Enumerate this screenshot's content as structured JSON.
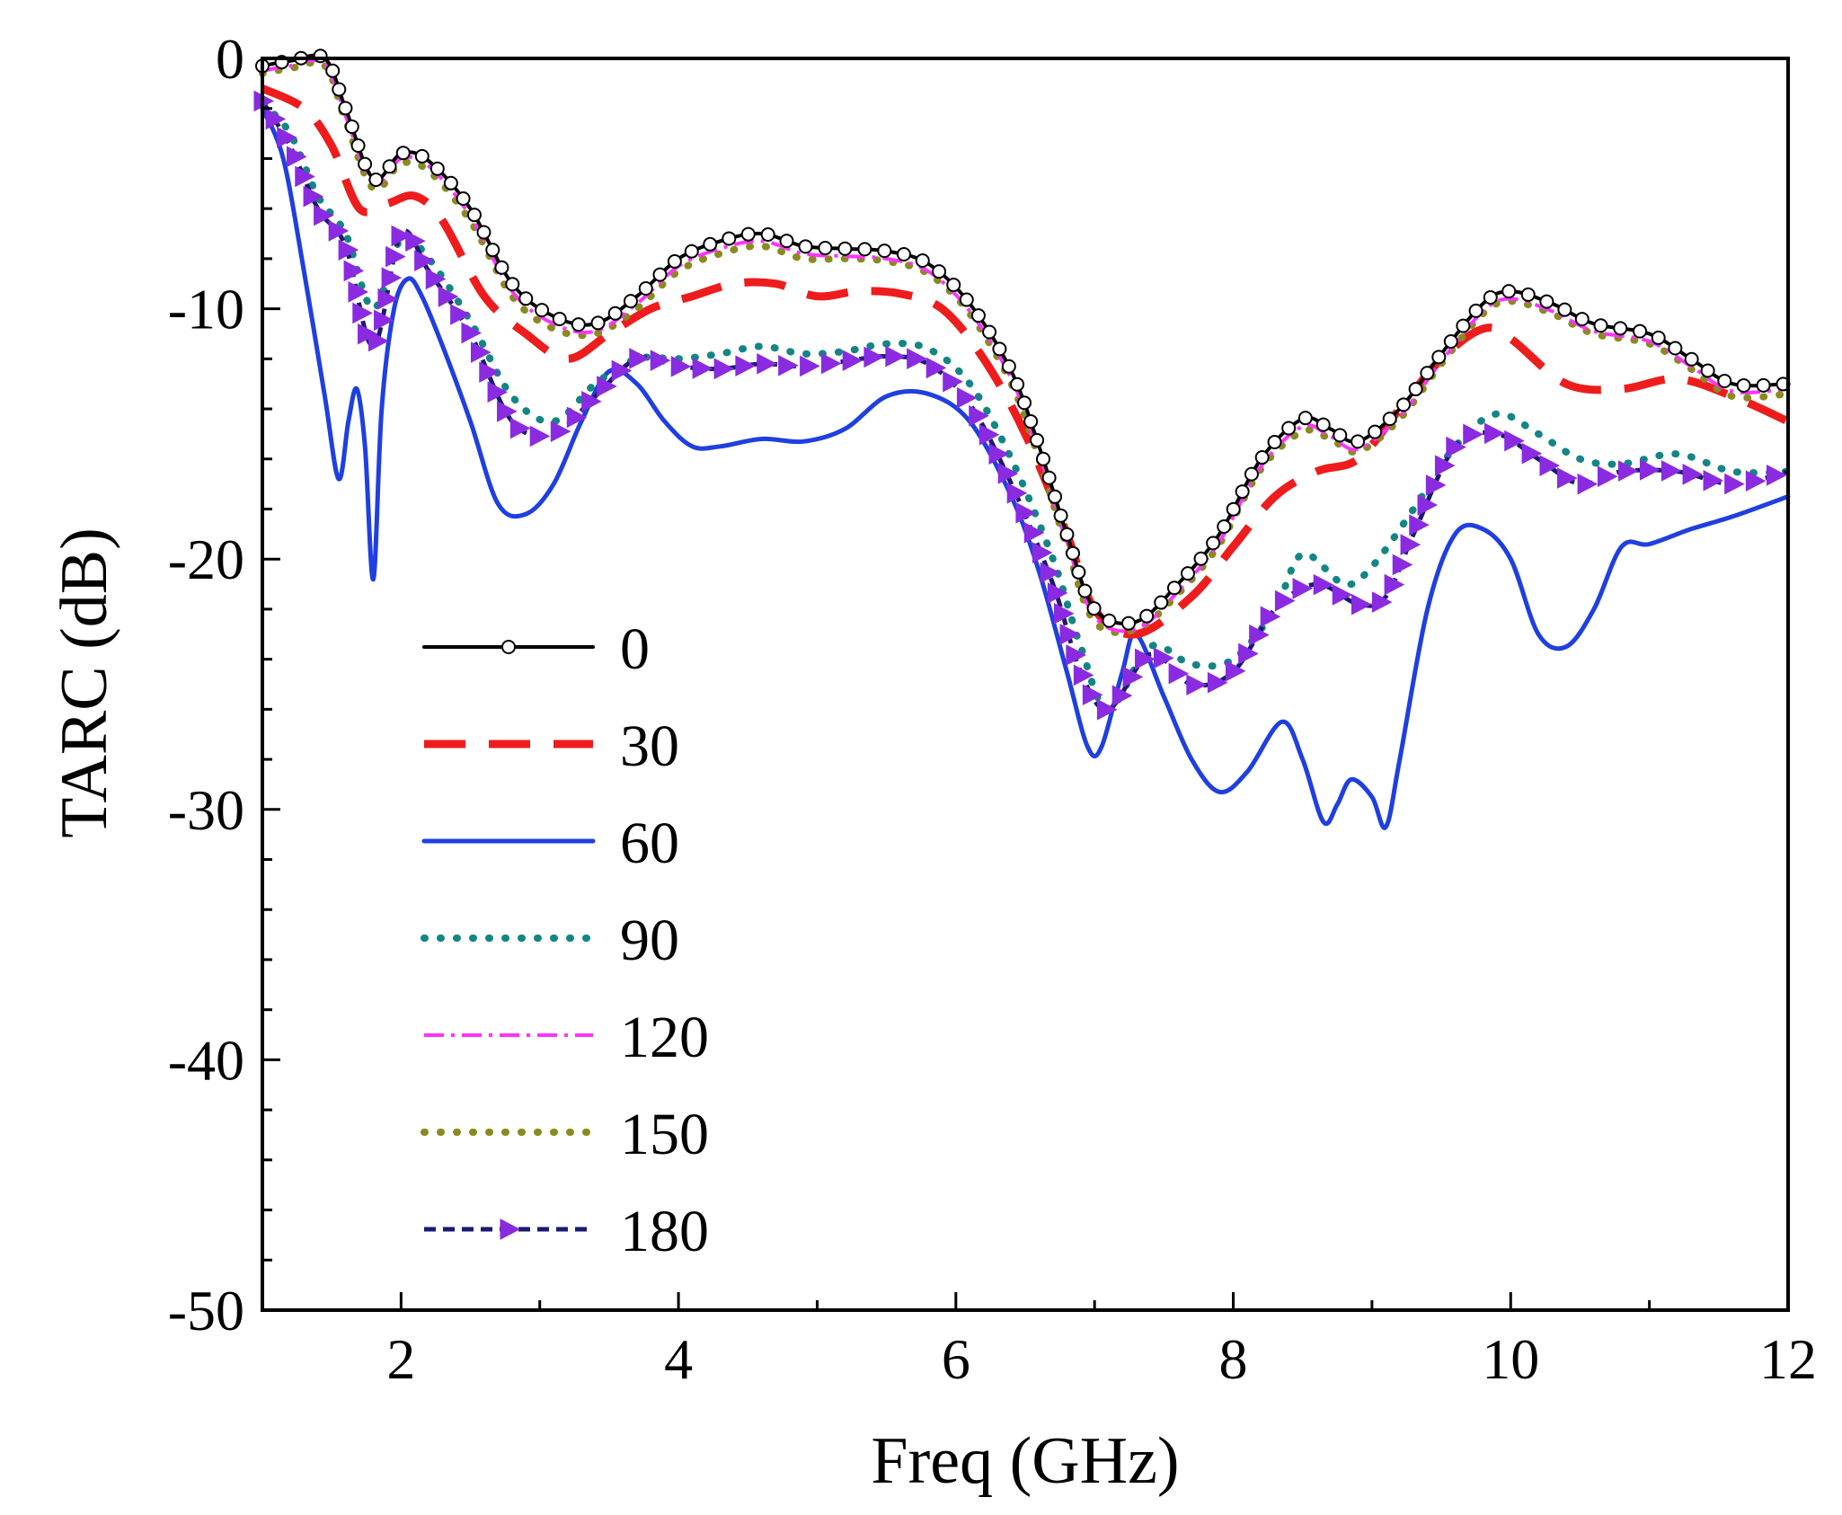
{
  "chart_data": {
    "type": "line",
    "title": "",
    "xlabel": "Freq (GHz)",
    "ylabel": "TARC (dB)",
    "xlim": [
      1,
      12
    ],
    "ylim": [
      -50,
      0
    ],
    "xticks": [
      2,
      4,
      6,
      8,
      10,
      12
    ],
    "yticks": [
      0,
      -10,
      -20,
      -30,
      -40,
      -50
    ],
    "xtick_labels": [
      "2",
      "4",
      "6",
      "8",
      "10",
      "12"
    ],
    "ytick_labels": [
      "0",
      "-10",
      "-20",
      "-30",
      "-40",
      "-50"
    ],
    "legend_position": "lower-left",
    "grid": false,
    "series": [
      {
        "name": "0",
        "color": "#000000",
        "style": "solid-circle",
        "x": [
          1.0,
          1.2,
          1.45,
          1.6,
          1.8,
          2.0,
          2.2,
          2.5,
          2.8,
          3.1,
          3.4,
          3.7,
          4.0,
          4.3,
          4.6,
          4.9,
          5.2,
          5.5,
          5.8,
          6.1,
          6.4,
          6.6,
          6.8,
          7.0,
          7.3,
          7.6,
          7.9,
          8.2,
          8.5,
          8.7,
          8.9,
          9.2,
          9.5,
          9.8,
          10.0,
          10.3,
          10.6,
          11.0,
          11.3,
          11.6,
          12.0
        ],
        "y": [
          -0.3,
          -0.1,
          0.0,
          -2.0,
          -4.8,
          -3.8,
          -4.1,
          -6.0,
          -9.0,
          -10.3,
          -10.6,
          -9.5,
          -8.0,
          -7.3,
          -7.0,
          -7.5,
          -7.6,
          -7.7,
          -8.2,
          -9.8,
          -12.5,
          -15.5,
          -19.0,
          -22.0,
          -22.5,
          -21.0,
          -19.0,
          -16.0,
          -14.4,
          -14.8,
          -15.3,
          -14.0,
          -11.8,
          -9.8,
          -9.3,
          -9.8,
          -10.6,
          -11.0,
          -12.0,
          -13.0,
          -13.0
        ]
      },
      {
        "name": "30",
        "color": "#ee1c1c",
        "style": "dashed",
        "x": [
          1.0,
          1.3,
          1.5,
          1.7,
          1.9,
          2.1,
          2.3,
          2.6,
          2.9,
          3.2,
          3.5,
          3.8,
          4.1,
          4.4,
          4.7,
          5.0,
          5.3,
          5.6,
          5.9,
          6.2,
          6.5,
          6.8,
          7.0,
          7.3,
          7.7,
          8.0,
          8.3,
          8.6,
          8.9,
          9.2,
          9.5,
          9.8,
          10.0,
          10.4,
          10.8,
          11.2,
          11.6,
          12.0
        ],
        "y": [
          -1.2,
          -2.0,
          -3.5,
          -6.0,
          -5.8,
          -5.5,
          -6.5,
          -9.5,
          -11.0,
          -12.0,
          -11.0,
          -10.0,
          -9.5,
          -9.0,
          -9.0,
          -9.5,
          -9.3,
          -9.4,
          -10.0,
          -12.0,
          -15.0,
          -19.0,
          -22.0,
          -23.0,
          -21.5,
          -19.5,
          -17.5,
          -16.5,
          -16.0,
          -14.0,
          -12.0,
          -10.8,
          -11.2,
          -13.0,
          -13.2,
          -12.8,
          -13.5,
          -14.5
        ]
      },
      {
        "name": "60",
        "color": "#1f3fe0",
        "style": "solid",
        "x": [
          1.0,
          1.15,
          1.3,
          1.45,
          1.55,
          1.62,
          1.68,
          1.74,
          1.8,
          1.86,
          1.95,
          2.05,
          2.15,
          2.3,
          2.5,
          2.7,
          2.9,
          3.1,
          3.3,
          3.5,
          3.7,
          3.9,
          4.1,
          4.3,
          4.6,
          4.9,
          5.2,
          5.5,
          5.8,
          6.1,
          6.4,
          6.6,
          6.8,
          6.95,
          7.05,
          7.2,
          7.3,
          7.5,
          7.7,
          7.9,
          8.1,
          8.35,
          8.5,
          8.65,
          8.75,
          8.85,
          9.0,
          9.1,
          9.2,
          9.4,
          9.6,
          9.8,
          10.0,
          10.2,
          10.4,
          10.6,
          10.8,
          11.0,
          11.3,
          11.6,
          12.0
        ],
        "y": [
          -2.0,
          -4.0,
          -8.5,
          -13.5,
          -16.8,
          -14.5,
          -13.2,
          -15.5,
          -20.8,
          -14.0,
          -10.0,
          -8.8,
          -9.5,
          -11.5,
          -14.5,
          -17.8,
          -18.2,
          -17.0,
          -14.5,
          -12.5,
          -13.0,
          -14.5,
          -15.5,
          -15.5,
          -15.2,
          -15.3,
          -14.8,
          -13.5,
          -13.4,
          -14.5,
          -17.5,
          -20.5,
          -24.5,
          -27.5,
          -27.5,
          -24.5,
          -23.0,
          -25.5,
          -28.0,
          -29.3,
          -28.5,
          -26.5,
          -28.0,
          -30.5,
          -29.8,
          -28.8,
          -29.5,
          -30.7,
          -28.0,
          -22.0,
          -19.0,
          -18.8,
          -20.0,
          -23.0,
          -23.5,
          -22.0,
          -19.5,
          -19.4,
          -18.8,
          -18.3,
          -17.5
        ]
      },
      {
        "name": "90",
        "color": "#148585",
        "style": "dotted",
        "x": [
          1.0,
          1.2,
          1.4,
          1.6,
          1.8,
          2.0,
          2.2,
          2.5,
          2.8,
          3.1,
          3.4,
          3.7,
          4.0,
          4.3,
          4.6,
          4.9,
          5.2,
          5.5,
          5.8,
          6.1,
          6.4,
          6.7,
          6.9,
          7.1,
          7.4,
          7.7,
          8.0,
          8.3,
          8.5,
          8.8,
          9.0,
          9.3,
          9.6,
          9.9,
          10.2,
          10.5,
          10.8,
          11.2,
          11.6,
          12.0
        ],
        "y": [
          -1.8,
          -3.0,
          -5.5,
          -7.0,
          -10.0,
          -7.2,
          -8.0,
          -10.5,
          -13.5,
          -14.5,
          -13.0,
          -12.0,
          -12.0,
          -11.8,
          -11.5,
          -11.8,
          -11.7,
          -11.4,
          -11.6,
          -13.0,
          -16.0,
          -20.0,
          -23.5,
          -26.0,
          -23.5,
          -24.2,
          -24.0,
          -22.0,
          -19.8,
          -21.0,
          -20.3,
          -18.0,
          -15.5,
          -14.2,
          -15.0,
          -16.0,
          -16.2,
          -15.8,
          -16.5,
          -16.5
        ]
      },
      {
        "name": "120",
        "color": "#ff33ff",
        "style": "dashdot",
        "x": [
          1.0,
          1.2,
          1.45,
          1.6,
          1.8,
          2.0,
          2.2,
          2.5,
          2.8,
          3.1,
          3.4,
          3.7,
          4.0,
          4.3,
          4.6,
          4.9,
          5.2,
          5.5,
          5.8,
          6.1,
          6.4,
          6.6,
          6.8,
          7.0,
          7.3,
          7.6,
          7.9,
          8.2,
          8.5,
          8.7,
          8.9,
          9.2,
          9.5,
          9.8,
          10.0,
          10.3,
          10.6,
          11.0,
          11.3,
          11.6,
          12.0
        ],
        "y": [
          -0.5,
          -0.3,
          -0.2,
          -2.3,
          -5.0,
          -4.0,
          -4.3,
          -6.3,
          -9.3,
          -10.6,
          -10.9,
          -9.8,
          -8.3,
          -7.6,
          -7.3,
          -7.8,
          -7.9,
          -8.0,
          -8.5,
          -10.1,
          -12.8,
          -15.8,
          -19.3,
          -22.3,
          -22.8,
          -21.3,
          -19.3,
          -16.3,
          -14.7,
          -15.1,
          -15.6,
          -14.3,
          -12.1,
          -10.1,
          -9.6,
          -10.1,
          -10.9,
          -11.3,
          -12.3,
          -13.3,
          -13.2
        ]
      },
      {
        "name": "150",
        "color": "#8a8a1e",
        "style": "dotted",
        "x": [
          1.0,
          1.2,
          1.45,
          1.6,
          1.8,
          2.0,
          2.2,
          2.5,
          2.8,
          3.1,
          3.4,
          3.7,
          4.0,
          4.3,
          4.6,
          4.9,
          5.2,
          5.5,
          5.8,
          6.1,
          6.4,
          6.6,
          6.8,
          7.0,
          7.3,
          7.6,
          7.9,
          8.2,
          8.5,
          8.7,
          8.9,
          9.2,
          9.5,
          9.8,
          10.0,
          10.3,
          10.6,
          11.0,
          11.3,
          11.6,
          12.0
        ],
        "y": [
          -0.6,
          -0.4,
          -0.3,
          -2.5,
          -5.2,
          -4.2,
          -4.5,
          -6.5,
          -9.5,
          -10.8,
          -11.0,
          -10.0,
          -8.5,
          -7.8,
          -7.5,
          -8.0,
          -8.0,
          -8.1,
          -8.6,
          -10.2,
          -13.0,
          -16.0,
          -19.5,
          -22.5,
          -22.8,
          -21.4,
          -19.4,
          -16.4,
          -14.9,
          -15.2,
          -15.7,
          -14.4,
          -12.2,
          -10.2,
          -9.7,
          -10.2,
          -11.0,
          -11.4,
          -12.4,
          -13.5,
          -13.4
        ]
      },
      {
        "name": "180",
        "color": "#1a1a6e",
        "marker_color": "#8a2be2",
        "style": "dashed-triangle",
        "x": [
          1.0,
          1.2,
          1.4,
          1.6,
          1.8,
          2.0,
          2.2,
          2.5,
          2.8,
          3.1,
          3.4,
          3.7,
          4.0,
          4.3,
          4.6,
          4.9,
          5.2,
          5.5,
          5.8,
          6.1,
          6.4,
          6.7,
          6.9,
          7.1,
          7.4,
          7.7,
          8.0,
          8.3,
          8.6,
          8.9,
          9.1,
          9.3,
          9.6,
          9.9,
          10.2,
          10.5,
          10.8,
          11.2,
          11.6,
          12.0
        ],
        "y": [
          -1.7,
          -3.5,
          -6.0,
          -7.5,
          -11.5,
          -7.0,
          -8.5,
          -11.0,
          -14.5,
          -15.0,
          -13.5,
          -12.0,
          -12.3,
          -12.4,
          -12.2,
          -12.3,
          -12.1,
          -11.9,
          -12.2,
          -13.8,
          -17.0,
          -21.0,
          -24.5,
          -26.0,
          -23.8,
          -25.0,
          -24.5,
          -22.0,
          -21.0,
          -21.8,
          -21.5,
          -19.0,
          -15.5,
          -15.0,
          -16.0,
          -17.0,
          -16.5,
          -16.5,
          -17.0,
          -16.5
        ]
      }
    ]
  }
}
